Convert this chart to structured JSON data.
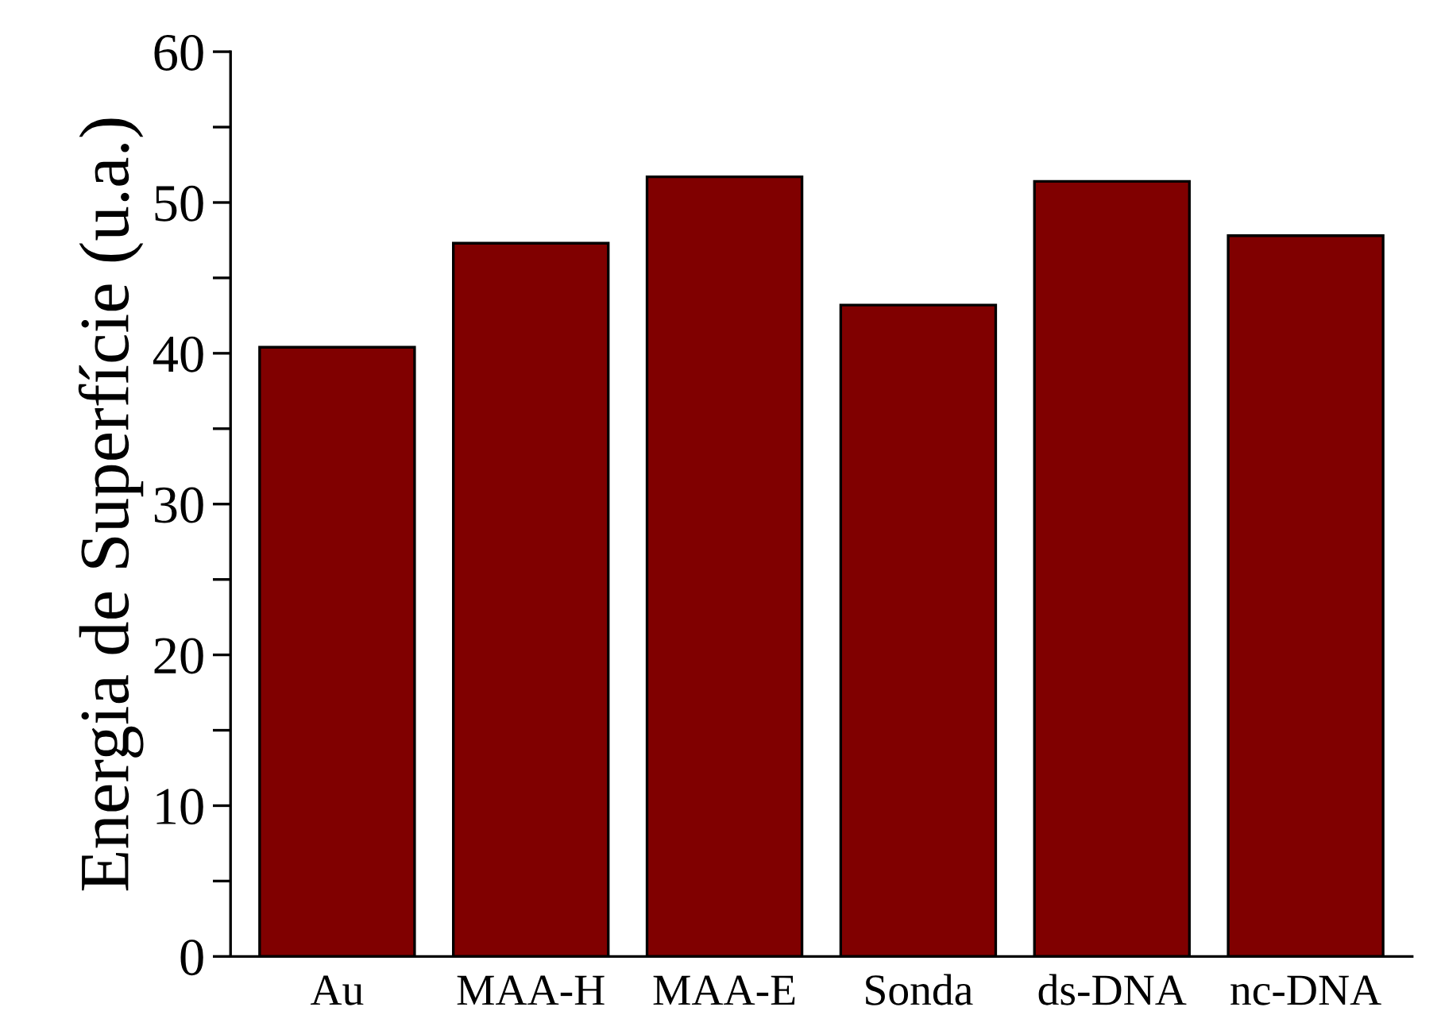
{
  "chart_data": {
    "type": "bar",
    "ylabel": "Energia de Superfície (u.a.)",
    "categories": [
      "Au",
      "MAA-H",
      "MAA-E",
      "Sonda",
      "ds-DNA",
      "nc-DNA"
    ],
    "values": [
      40.4,
      47.3,
      51.7,
      43.2,
      51.4,
      47.8
    ],
    "color": "#800000",
    "ylim": [
      0,
      60
    ],
    "yticks": [
      0,
      {
        "value": 5,
        "label": null
      },
      10,
      {
        "value": 15,
        "label": null
      },
      20,
      {
        "value": 25,
        "label": null
      },
      30,
      {
        "value": 35,
        "label": null
      },
      40,
      {
        "value": 45,
        "label": null
      },
      50,
      {
        "value": 55,
        "label": null
      },
      60
    ],
    "grid": false
  }
}
